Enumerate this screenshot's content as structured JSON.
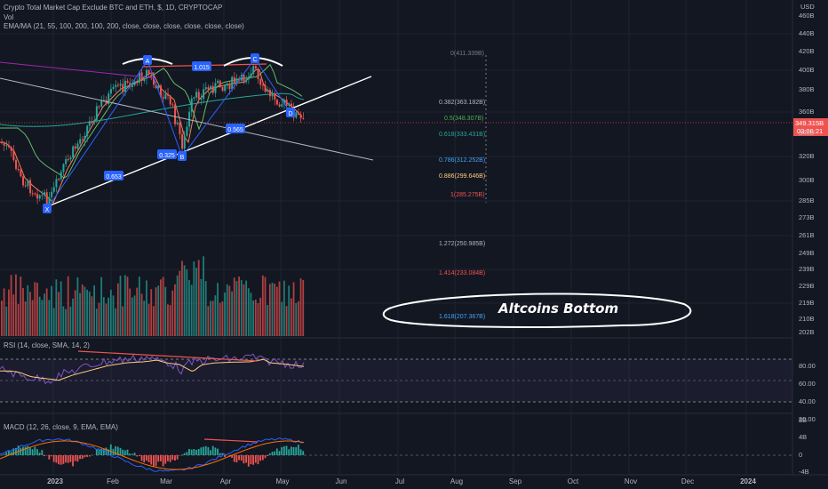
{
  "header": {
    "title": "Crypto Total Market Cap Exclude BTC and ETH, $, 1D, CRYPTOCAP",
    "volume_label": "Vol",
    "ema_label": "EMA/MA (21, 55, 100, 200, 100, 200, close, close, close, close, close, close)"
  },
  "rsi_label": "RSI (14, close, SMA, 14, 2)",
  "macd_label": "MACD (12, 26, close, 9, EMA, EMA)",
  "currency": "USD",
  "price_axis": [
    "460B",
    "440B",
    "420B",
    "400B",
    "380B",
    "360B",
    "340B",
    "320B",
    "300B",
    "285B",
    "273B",
    "261B",
    "249B",
    "239B",
    "229B",
    "219B",
    "210B",
    "202B"
  ],
  "last_price": {
    "value": "349.315B",
    "timer": "03:06:21"
  },
  "rsi_axis": [
    "80.00",
    "60.00",
    "40.00",
    "20.00"
  ],
  "macd_axis": [
    "8B",
    "4B",
    "0",
    "-4B"
  ],
  "time_axis": [
    "2023",
    "Feb",
    "Mar",
    "Apr",
    "May",
    "Jun",
    "Jul",
    "Aug",
    "Sep",
    "Oct",
    "Nov",
    "Dec",
    "2024"
  ],
  "fib_levels": [
    {
      "ratio": "0",
      "value": "411.339B",
      "color": "#787b86"
    },
    {
      "ratio": "0.382",
      "value": "363.182B",
      "color": "#b2b5be"
    },
    {
      "ratio": "0.5",
      "value": "348.307B",
      "color": "#4caf50"
    },
    {
      "ratio": "0.618",
      "value": "333.431B",
      "color": "#26a69a"
    },
    {
      "ratio": "0.786",
      "value": "312.252B",
      "color": "#42a5f5"
    },
    {
      "ratio": "0.886",
      "value": "299.646B",
      "color": "#ffcc80"
    },
    {
      "ratio": "1",
      "value": "285.275B",
      "color": "#ef5350"
    },
    {
      "ratio": "1.272",
      "value": "250.985B",
      "color": "#b2b5be"
    },
    {
      "ratio": "1.414",
      "value": "233.084B",
      "color": "#ef5350"
    },
    {
      "ratio": "1.618",
      "value": "207.367B",
      "color": "#42a5f5"
    }
  ],
  "pattern_points": [
    "X",
    "A",
    "B",
    "C",
    "D"
  ],
  "pattern_ratios": [
    "0.653",
    "1.015",
    "0.325",
    "0.565"
  ],
  "annotation": "Altcoins Bottom",
  "colors": {
    "up": "#26a69a",
    "down": "#ef5350",
    "bg": "#131722",
    "pattern": "#2962ff"
  }
}
